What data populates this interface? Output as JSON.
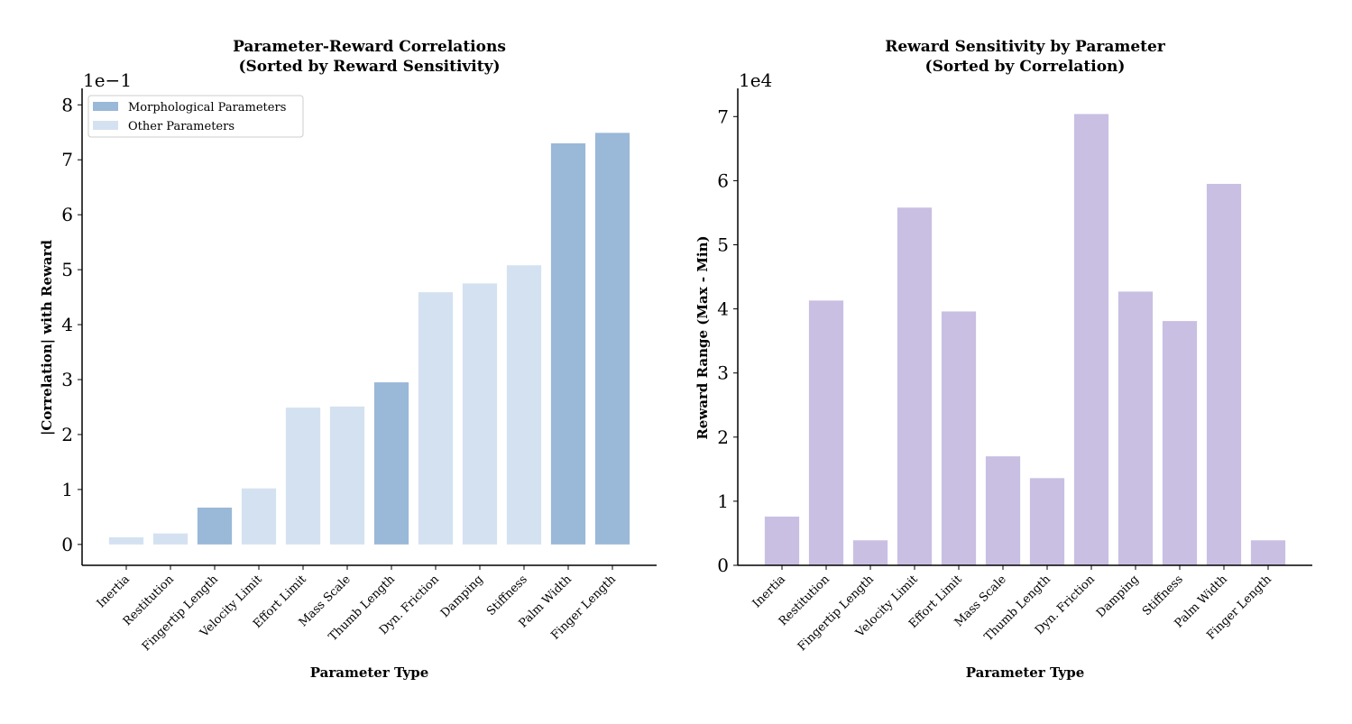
{
  "chart_data": [
    {
      "type": "bar",
      "title": "Parameter-Reward Correlations\n(Sorted by Reward Sensitivity)",
      "x_label": "Parameter Type",
      "y_label": "|Correlation| with Reward",
      "offset_text": "1e−1",
      "categories": [
        "Inertia",
        "Restitution",
        "Fingertip Length",
        "Velocity Limit",
        "Effort Limit",
        "Mass Scale",
        "Thumb Length",
        "Dyn. Friction",
        "Damping",
        "Stiffness",
        "Palm Width",
        "Finger Length"
      ],
      "values": [
        0.13,
        0.2,
        0.67,
        1.02,
        2.49,
        2.51,
        2.95,
        4.59,
        4.75,
        5.08,
        7.3,
        7.49
      ],
      "colors": [
        "#d4e1f0",
        "#d4e1f0",
        "#9ab8d8",
        "#d4e1f0",
        "#d4e1f0",
        "#d4e1f0",
        "#9ab8d8",
        "#d4e1f0",
        "#d4e1f0",
        "#d4e1f0",
        "#9ab8d8",
        "#9ab8d8"
      ],
      "legend": [
        {
          "name": "Morphological Parameters",
          "color": "#9ab8d8"
        },
        {
          "name": "Other Parameters",
          "color": "#d4e1f0"
        }
      ],
      "legend_position": "upper-left",
      "ylim": [
        -0.38,
        8.3
      ],
      "yticks": [
        0,
        1,
        2,
        3,
        4,
        5,
        6,
        7,
        8
      ]
    },
    {
      "type": "bar",
      "title": "Reward Sensitivity by Parameter\n(Sorted by Correlation)",
      "x_label": "Parameter Type",
      "y_label": "Reward Range (Max - Min)",
      "offset_text": "1e4",
      "categories": [
        "Inertia",
        "Restitution",
        "Fingertip Length",
        "Velocity Limit",
        "Effort Limit",
        "Mass Scale",
        "Thumb Length",
        "Dyn. Friction",
        "Damping",
        "Stiffness",
        "Palm Width",
        "Finger Length"
      ],
      "values": [
        0.76,
        4.13,
        0.39,
        5.58,
        3.96,
        1.7,
        1.36,
        7.04,
        4.27,
        3.81,
        5.95,
        0.39
      ],
      "color": "#c9bfe2",
      "ylim": [
        0,
        7.44
      ],
      "yticks": [
        0,
        1,
        2,
        3,
        4,
        5,
        6,
        7
      ]
    }
  ]
}
